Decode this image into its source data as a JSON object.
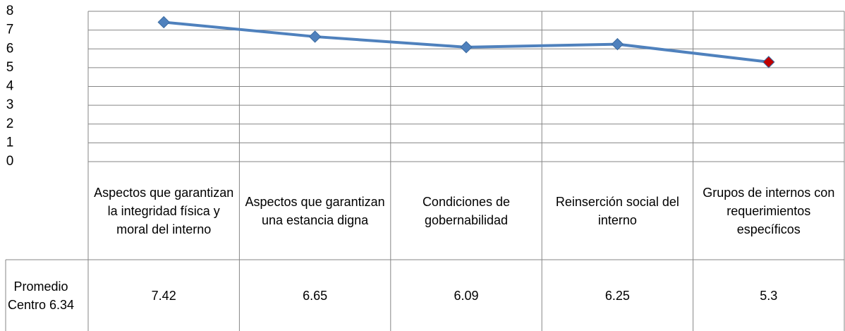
{
  "chart_data": {
    "type": "line",
    "categories": [
      "Aspectos que garantizan la integridad física y moral del interno",
      "Aspectos que garantizan una estancia digna",
      "Condiciones de gobernabilidad",
      "Reinserción social del interno",
      "Grupos de internos con requerimientos específicos"
    ],
    "series": [
      {
        "name": "Promedio Centro 6.34",
        "color": "#4f81bd",
        "marker_colors": [
          "#4f81bd",
          "#4f81bd",
          "#4f81bd",
          "#4f81bd",
          "#c00000"
        ],
        "values": [
          7.42,
          6.65,
          6.09,
          6.25,
          5.3
        ]
      }
    ],
    "ylim": [
      0,
      8
    ],
    "yticks": [
      0,
      1,
      2,
      3,
      4,
      5,
      6,
      7,
      8
    ],
    "grid": true
  }
}
